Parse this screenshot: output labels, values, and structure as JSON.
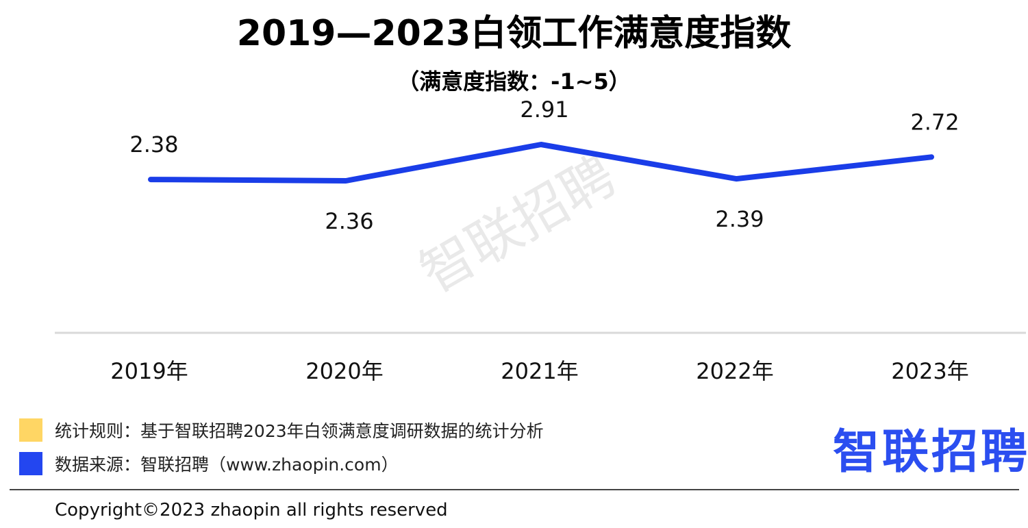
{
  "chart_data": {
    "type": "line",
    "title": "2019—2023白领工作满意度指数",
    "subtitle": "（满意度指数：-1~5）",
    "categories": [
      "2019年",
      "2020年",
      "2021年",
      "2022年",
      "2023年"
    ],
    "series": [
      {
        "values": [
          2.38,
          2.36,
          2.91,
          2.39,
          2.72
        ],
        "color": "#1a3de8"
      }
    ],
    "data_labels": [
      "2.38",
      "2.36",
      "2.91",
      "2.39",
      "2.72"
    ],
    "xlabel": "",
    "ylabel": "",
    "grid": false,
    "legend": "none"
  },
  "legend": {
    "items": [
      {
        "label": "统计规则：基于智联招聘2023年白领满意度调研数据的统计分析",
        "color": "#ffd664"
      },
      {
        "label": "数据来源：智联招聘（www.zhaopin.com）",
        "color": "#2346f0"
      }
    ]
  },
  "brand": {
    "logo_text": "智联招聘",
    "color": "#2b4ef0",
    "accent": "#ffc83c"
  },
  "watermark": "智联招聘",
  "footer": {
    "copyright": "Copyright©2023 zhaopin all rights reserved"
  }
}
